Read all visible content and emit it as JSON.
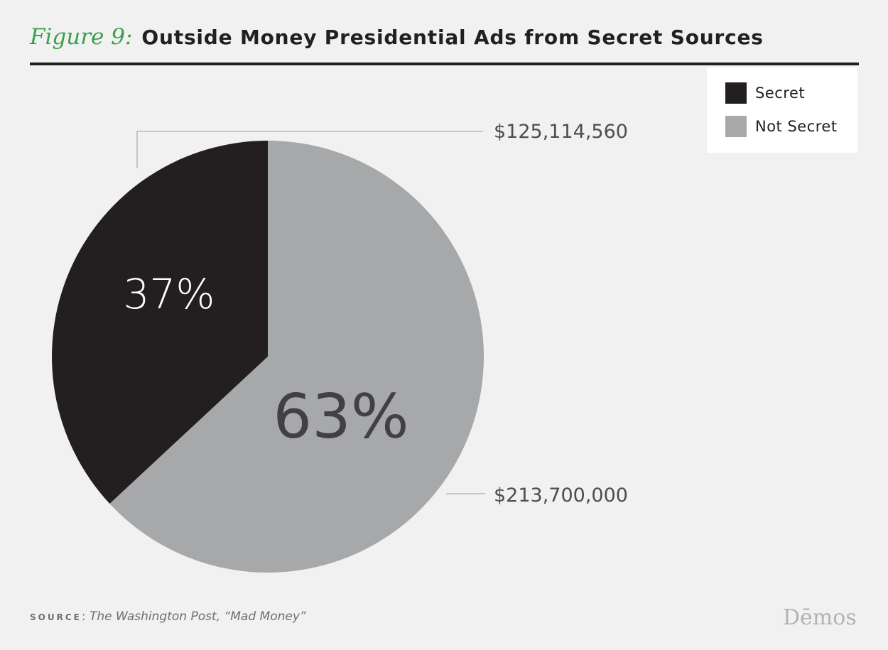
{
  "header": {
    "figure_label": "Figure 9:",
    "title": "Outside Money Presidential Ads from Secret Sources"
  },
  "colors": {
    "secret": "#231f20",
    "not_secret": "#a7a8aa",
    "figure_label": "#3aa04a",
    "background": "#f1f1f1"
  },
  "chart_data": {
    "type": "pie",
    "title": "Outside Money Presidential Ads from Secret Sources",
    "categories": [
      "Secret",
      "Not Secret"
    ],
    "values": [
      125114560,
      213700000
    ],
    "percent_labels": [
      "37%",
      "63%"
    ],
    "value_labels": [
      "$125,114,560",
      "$213,700,000"
    ],
    "legend": {
      "position": "top-right",
      "entries": [
        "Secret",
        "Not Secret"
      ]
    }
  },
  "footer": {
    "source_key": "SOURCE",
    "source_text": "The Washington Post, “Mad Money”",
    "brand": "Dēmos"
  }
}
